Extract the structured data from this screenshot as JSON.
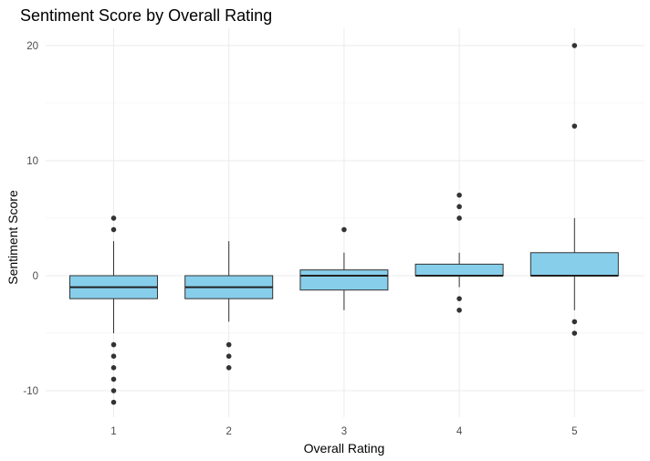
{
  "chart_data": {
    "type": "box",
    "title": "Sentiment Score by Overall Rating",
    "xlabel": "Overall Rating",
    "ylabel": "Sentiment Score",
    "categories": [
      "1",
      "2",
      "3",
      "4",
      "5"
    ],
    "y_ticks": [
      -10,
      0,
      10,
      20
    ],
    "ylim": [
      -12.3,
      21.5
    ],
    "grid": true,
    "fill_color": "#87ceeb",
    "outline_color": "#333333",
    "boxes": [
      {
        "category": "1",
        "whisker_low": -5,
        "q1": -2,
        "median": -1,
        "q3": 0,
        "whisker_high": 3,
        "outliers": [
          5,
          4,
          -6,
          -7,
          -8,
          -9,
          -10,
          -11
        ]
      },
      {
        "category": "2",
        "whisker_low": -4,
        "q1": -2,
        "median": -1,
        "q3": 0,
        "whisker_high": 3,
        "outliers": [
          -6,
          -7,
          -8
        ]
      },
      {
        "category": "3",
        "whisker_low": -3,
        "q1": -1.25,
        "median": 0,
        "q3": 0.5,
        "whisker_high": 2,
        "outliers": [
          4
        ]
      },
      {
        "category": "4",
        "whisker_low": -1,
        "q1": 0,
        "median": 0,
        "q3": 1,
        "whisker_high": 2,
        "outliers": [
          7,
          6,
          5,
          -2,
          -3
        ]
      },
      {
        "category": "5",
        "whisker_low": -3,
        "q1": 0,
        "median": 0,
        "q3": 2,
        "whisker_high": 5,
        "outliers": [
          20,
          13,
          -4,
          -5
        ]
      }
    ]
  }
}
